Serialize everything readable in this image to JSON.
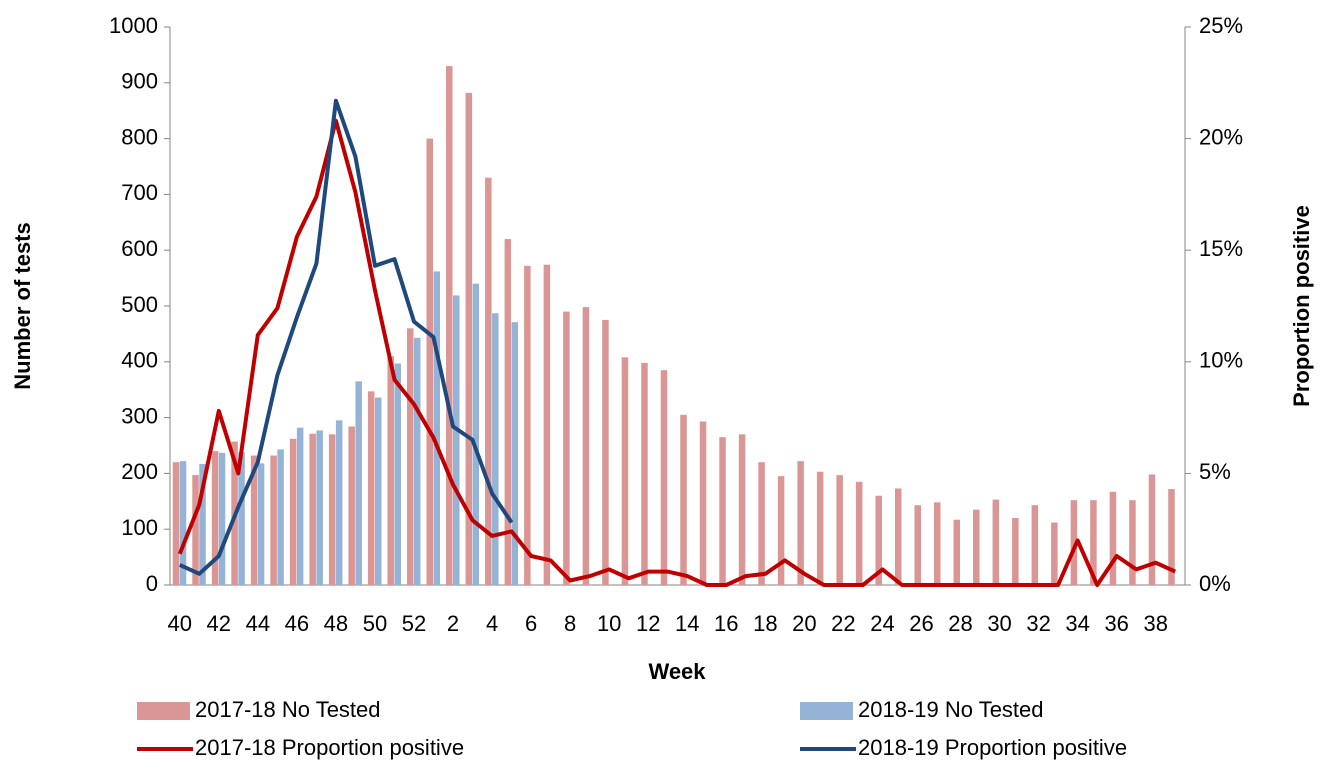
{
  "chart_data": {
    "type": "bar",
    "x_label": "Week",
    "y_label": "Number of tests",
    "y2_label": "Proportion positive",
    "categories": [
      "40",
      null,
      "42",
      null,
      "44",
      null,
      "46",
      null,
      "48",
      null,
      "50",
      null,
      "52",
      null,
      "2",
      null,
      "4",
      null,
      "6",
      null,
      "8",
      null,
      "10",
      null,
      "12",
      null,
      "14",
      null,
      "16",
      null,
      "18",
      null,
      "20",
      null,
      "22",
      null,
      "24",
      null,
      "26",
      null,
      "28",
      null,
      "30",
      null,
      "32",
      null,
      "34",
      null,
      "36",
      null,
      "38",
      null
    ],
    "ylim": [
      0,
      1000
    ],
    "yticks": [
      0,
      100,
      200,
      300,
      400,
      500,
      600,
      700,
      800,
      900,
      1000
    ],
    "y2lim": [
      0,
      25
    ],
    "y2ticks": [
      {
        "value": 0,
        "label": "0%"
      },
      {
        "value": 5,
        "label": "5%"
      },
      {
        "value": 10,
        "label": "10%"
      },
      {
        "value": 15,
        "label": "15%"
      },
      {
        "value": 20,
        "label": "20%"
      },
      {
        "value": 25,
        "label": "25%"
      }
    ],
    "series": [
      {
        "name": "2017-18 No Tested",
        "type": "bar",
        "color": "#d99694",
        "values": [
          220,
          197,
          240,
          257,
          232,
          232,
          262,
          271,
          270,
          284,
          347,
          410,
          460,
          800,
          930,
          882,
          730,
          620,
          572,
          574,
          490,
          498,
          475,
          408,
          398,
          385,
          305,
          293,
          265,
          270,
          220,
          195,
          222,
          203,
          197,
          185,
          160,
          173,
          143,
          148,
          117,
          135,
          153,
          120,
          143,
          112,
          152,
          152,
          167,
          152,
          198,
          172
        ]
      },
      {
        "name": "2018-19 No Tested",
        "type": "bar",
        "color": "#95b3d7",
        "values": [
          222,
          217,
          237,
          238,
          218,
          243,
          282,
          277,
          295,
          365,
          336,
          397,
          443,
          562,
          519,
          540,
          487,
          471,
          null,
          null,
          null,
          null,
          null,
          null,
          null,
          null,
          null,
          null,
          null,
          null,
          null,
          null,
          null,
          null,
          null,
          null,
          null,
          null,
          null,
          null,
          null,
          null,
          null,
          null,
          null,
          null,
          null,
          null,
          null,
          null,
          null,
          null
        ]
      },
      {
        "name": "2017-18 Proportion positive",
        "type": "line",
        "axis": "y2",
        "color": "#c00000",
        "values": [
          1.4,
          3.6,
          7.8,
          5.0,
          11.2,
          12.4,
          15.6,
          17.4,
          20.8,
          17.6,
          13.2,
          9.2,
          8.1,
          6.6,
          4.5,
          2.9,
          2.2,
          2.4,
          1.3,
          1.1,
          0.2,
          0.4,
          0.7,
          0.3,
          0.6,
          0.6,
          0.4,
          0,
          0,
          0.4,
          0.5,
          1.1,
          0.5,
          0,
          0,
          0,
          0.7,
          0,
          0,
          0,
          0,
          0,
          0,
          0,
          0,
          0,
          2.0,
          0,
          1.3,
          0.7,
          1.0,
          0.6
        ]
      },
      {
        "name": "2018-19 Proportion positive",
        "type": "line",
        "axis": "y2",
        "color": "#1f497d",
        "values": [
          0.9,
          0.5,
          1.3,
          3.5,
          5.5,
          9.4,
          12.0,
          14.4,
          21.7,
          19.2,
          14.3,
          14.6,
          11.8,
          11.1,
          7.1,
          6.5,
          4.1,
          2.8,
          null,
          null,
          null,
          null,
          null,
          null,
          null,
          null,
          null,
          null,
          null,
          null,
          null,
          null,
          null,
          null,
          null,
          null,
          null,
          null,
          null,
          null,
          null,
          null,
          null,
          null,
          null,
          null,
          null,
          null,
          null,
          null,
          null,
          null
        ]
      }
    ]
  }
}
